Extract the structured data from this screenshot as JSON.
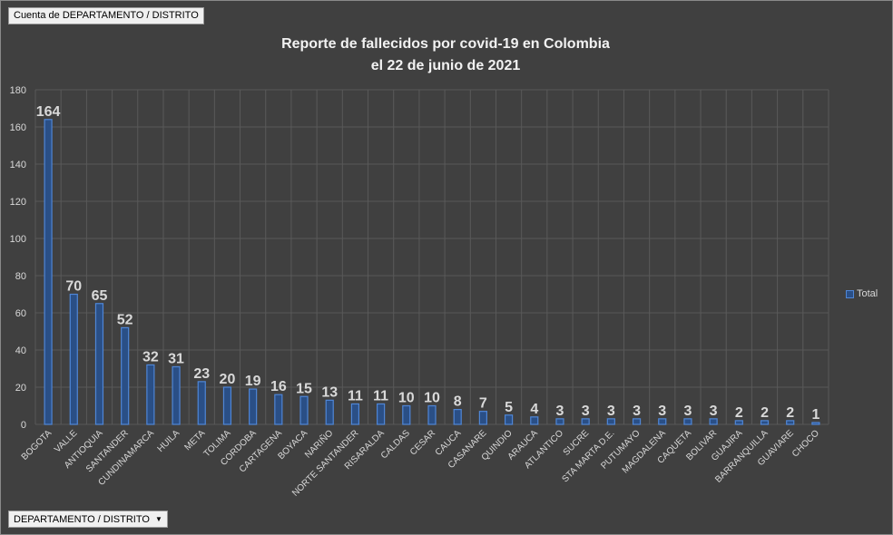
{
  "field_buttons": {
    "values_field": "Cuenta de DEPARTAMENTO / DISTRITO",
    "axis_field": "DEPARTAMENTO / DISTRITO"
  },
  "colors": {
    "background": "#404040",
    "bar_fill": "#2a4f86",
    "bar_stroke": "#4f86d6",
    "grid": "#595959",
    "text": "#d9d9d9",
    "data_label": "#d9d9d9"
  },
  "chart_data": {
    "type": "bar",
    "title": "Reporte de fallecidos por covid-19 en Colombia",
    "subtitle": "el 22 de junio de 2021",
    "xlabel": "",
    "ylabel": "",
    "ylim": [
      0,
      180
    ],
    "yticks": [
      0,
      20,
      40,
      60,
      80,
      100,
      120,
      140,
      160,
      180
    ],
    "grid": true,
    "legend_position": "right",
    "categories": [
      "BOGOTA",
      "VALLE",
      "ANTIOQUIA",
      "SANTANDER",
      "CUNDINAMARCA",
      "HUILA",
      "META",
      "TOLIMA",
      "CORDOBA",
      "CARTAGENA",
      "BOYACA",
      "NARIÑO",
      "NORTE SANTANDER",
      "RISARALDA",
      "CALDAS",
      "CESAR",
      "CAUCA",
      "CASANARE",
      "QUINDIO",
      "ARAUCA",
      "ATLANTICO",
      "SUCRE",
      "STA MARTA D.E.",
      "PUTUMAYO",
      "MAGDALENA",
      "CAQUETA",
      "BOLIVAR",
      "GUAJIRA",
      "BARRANQUILLA",
      "GUAVIARE",
      "CHOCO"
    ],
    "series": [
      {
        "name": "Total",
        "values": [
          164,
          70,
          65,
          52,
          32,
          31,
          23,
          20,
          19,
          16,
          15,
          13,
          11,
          11,
          10,
          10,
          8,
          7,
          5,
          4,
          3,
          3,
          3,
          3,
          3,
          3,
          3,
          2,
          2,
          2,
          1
        ]
      }
    ]
  }
}
